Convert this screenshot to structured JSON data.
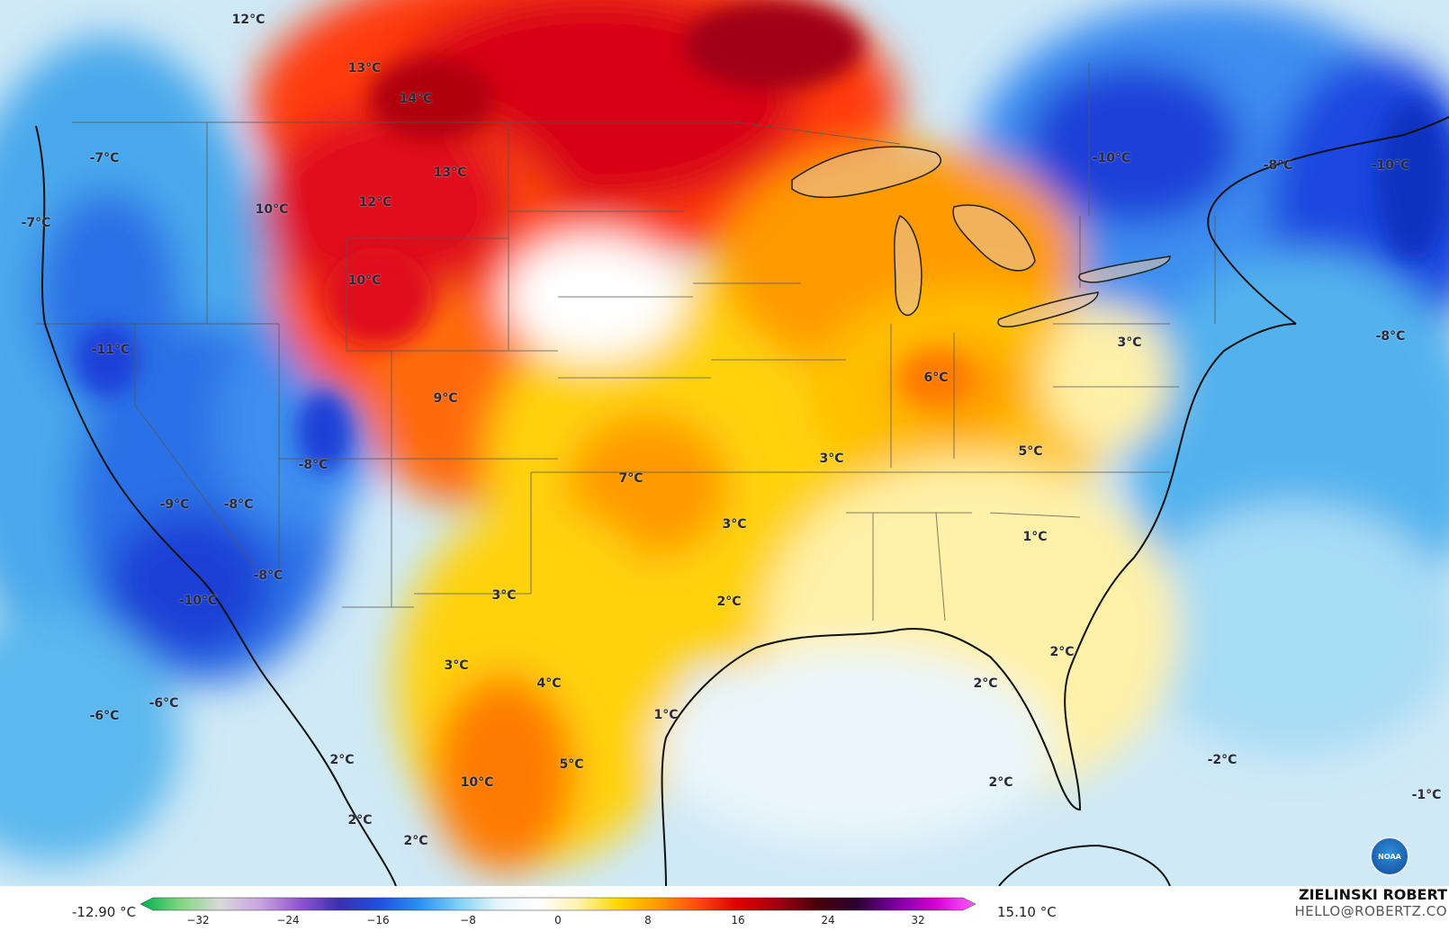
{
  "map": {
    "type": "temperature-anomaly-map",
    "region": "North America (CONUS)",
    "labels": [
      {
        "text": "12°C"
      },
      {
        "text": "13°C"
      },
      {
        "text": "14°C"
      },
      {
        "text": "13°C"
      },
      {
        "text": "12°C"
      },
      {
        "text": "10°C"
      },
      {
        "text": "10°C"
      },
      {
        "text": "9°C"
      },
      {
        "text": "-7°C"
      },
      {
        "text": "-7°C"
      },
      {
        "text": "-11°C"
      },
      {
        "text": "-8°C"
      },
      {
        "text": "-9°C"
      },
      {
        "text": "-8°C"
      },
      {
        "text": "-8°C"
      },
      {
        "text": "-10°C"
      },
      {
        "text": "-6°C"
      },
      {
        "text": "-6°C"
      },
      {
        "text": "7°C"
      },
      {
        "text": "3°C"
      },
      {
        "text": "3°C"
      },
      {
        "text": "2°C"
      },
      {
        "text": "3°C"
      },
      {
        "text": "3°C"
      },
      {
        "text": "4°C"
      },
      {
        "text": "5°C"
      },
      {
        "text": "10°C"
      },
      {
        "text": "2°C"
      },
      {
        "text": "2°C"
      },
      {
        "text": "2°C"
      },
      {
        "text": "1°C"
      },
      {
        "text": "6°C"
      },
      {
        "text": "5°C"
      },
      {
        "text": "3°C"
      },
      {
        "text": "1°C"
      },
      {
        "text": "2°C"
      },
      {
        "text": "2°C"
      },
      {
        "text": "2°C"
      },
      {
        "text": "-10°C"
      },
      {
        "text": "-8°C"
      },
      {
        "text": "-10°C"
      },
      {
        "text": "-8°C"
      },
      {
        "text": "-2°C"
      },
      {
        "text": "-1°C"
      }
    ]
  },
  "scale": {
    "min_label": "-12.90 °C",
    "max_label": "15.10 °C",
    "ticks": [
      "−32",
      "−24",
      "−16",
      "−8",
      "0",
      "8",
      "16",
      "24",
      "32"
    ],
    "range": [
      -36,
      36
    ],
    "colors": [
      "#00b050",
      "#7fd67f",
      "#d9d9d9",
      "#c9a4e0",
      "#9256cf",
      "#3a2fb0",
      "#1f4fe0",
      "#2a8ff0",
      "#7fd0f5",
      "#e6f6fb",
      "#ffffff",
      "#fff3b0",
      "#ffd800",
      "#ff9a00",
      "#ff4a10",
      "#e00000",
      "#a30012",
      "#4a0008",
      "#2a0030",
      "#7a00a0",
      "#d400d4",
      "#ff60ff"
    ]
  },
  "author": {
    "name": "ZIELINSKI ROBERT",
    "email": "HELLO@ROBERTZ.CO"
  },
  "logo": {
    "icon": "noaa-logo-icon",
    "text": "NOAA"
  }
}
